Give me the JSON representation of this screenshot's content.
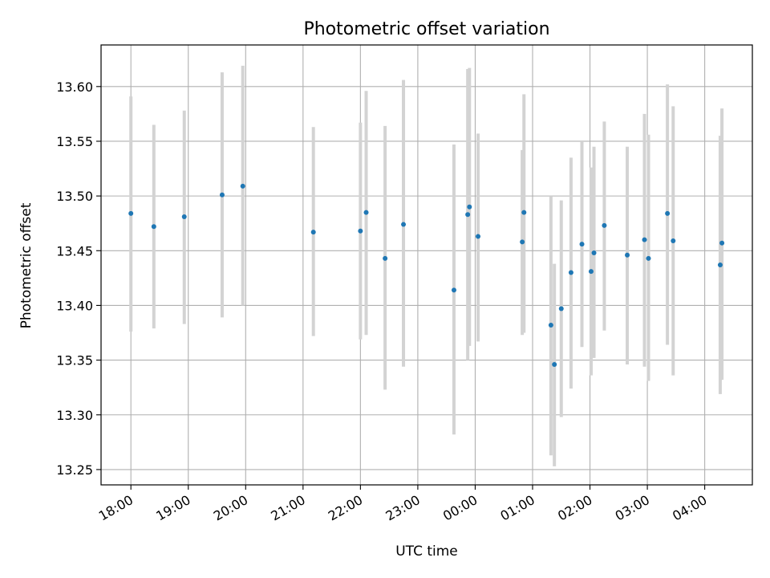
{
  "chart_data": {
    "type": "scatter",
    "title": "Photometric offset variation",
    "xlabel": "UTC time",
    "ylabel": "Photometric offset",
    "x_unit": "hours",
    "x_start_label": "18:00",
    "xlim": [
      17.48,
      28.83
    ],
    "ylim": [
      13.236,
      13.638
    ],
    "x_tick_values": [
      18,
      19,
      20,
      21,
      22,
      23,
      24,
      25,
      26,
      27,
      28
    ],
    "x_tick_labels": [
      "18:00",
      "19:00",
      "20:00",
      "21:00",
      "22:00",
      "23:00",
      "00:00",
      "01:00",
      "02:00",
      "03:00",
      "04:00"
    ],
    "y_tick_values": [
      13.25,
      13.3,
      13.35,
      13.4,
      13.45,
      13.5,
      13.55,
      13.6
    ],
    "y_tick_labels": [
      "13.25",
      "13.30",
      "13.35",
      "13.40",
      "13.45",
      "13.50",
      "13.55",
      "13.60"
    ],
    "grid": true,
    "point_color": "#1f77b4",
    "errorbar_color": "#d3d3d3",
    "points": [
      {
        "x": 18.0,
        "y": 13.484,
        "lo": 13.376,
        "hi": 13.591
      },
      {
        "x": 18.4,
        "y": 13.472,
        "lo": 13.379,
        "hi": 13.565
      },
      {
        "x": 18.93,
        "y": 13.481,
        "lo": 13.383,
        "hi": 13.578
      },
      {
        "x": 19.59,
        "y": 13.501,
        "lo": 13.389,
        "hi": 13.613
      },
      {
        "x": 19.95,
        "y": 13.509,
        "lo": 13.4,
        "hi": 13.619
      },
      {
        "x": 21.18,
        "y": 13.467,
        "lo": 13.372,
        "hi": 13.563
      },
      {
        "x": 22.0,
        "y": 13.468,
        "lo": 13.369,
        "hi": 13.567
      },
      {
        "x": 22.1,
        "y": 13.485,
        "lo": 13.373,
        "hi": 13.596
      },
      {
        "x": 22.43,
        "y": 13.443,
        "lo": 13.323,
        "hi": 13.564
      },
      {
        "x": 22.75,
        "y": 13.474,
        "lo": 13.344,
        "hi": 13.606
      },
      {
        "x": 23.63,
        "y": 13.414,
        "lo": 13.282,
        "hi": 13.547
      },
      {
        "x": 23.87,
        "y": 13.483,
        "lo": 13.35,
        "hi": 13.616
      },
      {
        "x": 23.9,
        "y": 13.49,
        "lo": 13.363,
        "hi": 13.617
      },
      {
        "x": 24.05,
        "y": 13.463,
        "lo": 13.367,
        "hi": 13.557
      },
      {
        "x": 24.82,
        "y": 13.458,
        "lo": 13.373,
        "hi": 13.542
      },
      {
        "x": 24.85,
        "y": 13.485,
        "lo": 13.375,
        "hi": 13.593
      },
      {
        "x": 25.32,
        "y": 13.382,
        "lo": 13.263,
        "hi": 13.5
      },
      {
        "x": 25.38,
        "y": 13.346,
        "lo": 13.253,
        "hi": 13.438
      },
      {
        "x": 25.5,
        "y": 13.397,
        "lo": 13.298,
        "hi": 13.496
      },
      {
        "x": 25.67,
        "y": 13.43,
        "lo": 13.324,
        "hi": 13.535
      },
      {
        "x": 25.86,
        "y": 13.456,
        "lo": 13.362,
        "hi": 13.55
      },
      {
        "x": 26.02,
        "y": 13.431,
        "lo": 13.336,
        "hi": 13.526
      },
      {
        "x": 26.07,
        "y": 13.448,
        "lo": 13.352,
        "hi": 13.545
      },
      {
        "x": 26.25,
        "y": 13.473,
        "lo": 13.377,
        "hi": 13.568
      },
      {
        "x": 26.65,
        "y": 13.446,
        "lo": 13.346,
        "hi": 13.545
      },
      {
        "x": 26.95,
        "y": 13.46,
        "lo": 13.344,
        "hi": 13.575
      },
      {
        "x": 27.02,
        "y": 13.443,
        "lo": 13.331,
        "hi": 13.556
      },
      {
        "x": 27.35,
        "y": 13.484,
        "lo": 13.364,
        "hi": 13.602
      },
      {
        "x": 27.45,
        "y": 13.459,
        "lo": 13.336,
        "hi": 13.582
      },
      {
        "x": 28.27,
        "y": 13.437,
        "lo": 13.319,
        "hi": 13.555
      },
      {
        "x": 28.3,
        "y": 13.457,
        "lo": 13.332,
        "hi": 13.58
      }
    ]
  }
}
